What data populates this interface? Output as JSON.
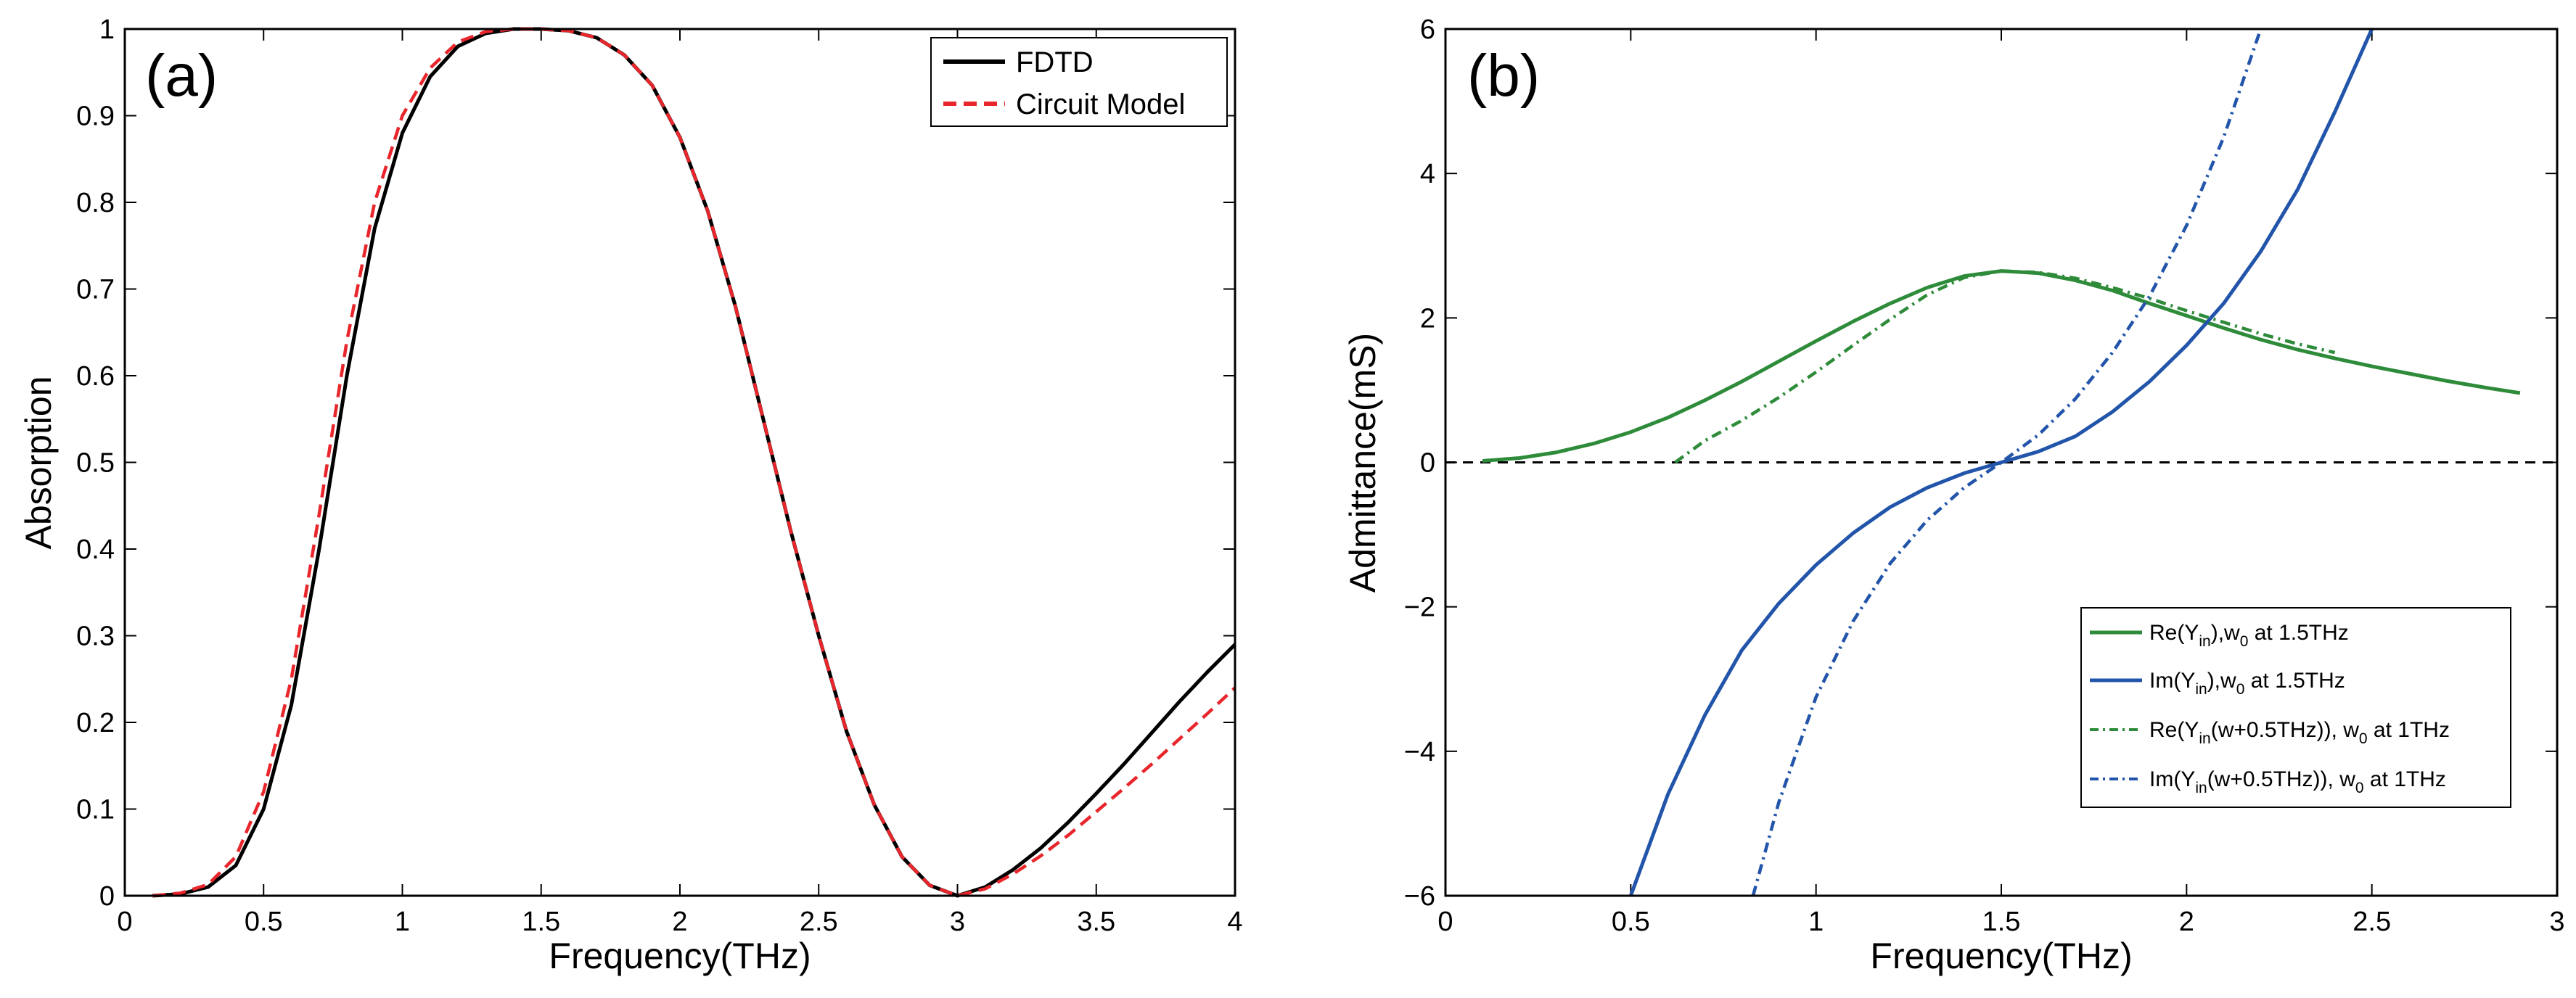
{
  "figure": {
    "panels": [
      "(a)",
      "(b)"
    ]
  },
  "chart_data": [
    {
      "type": "line",
      "panel_label": "(a)",
      "title": "",
      "xlabel": "Frequency(THz)",
      "ylabel": "Absorption",
      "xlim": [
        0,
        4
      ],
      "ylim": [
        0,
        1
      ],
      "x_ticks": [
        0,
        0.5,
        1,
        1.5,
        2,
        2.5,
        3,
        3.5,
        4
      ],
      "x_tick_labels": [
        "0",
        "0.5",
        "1",
        "1.5",
        "2",
        "2.5",
        "3",
        "3.5",
        "4"
      ],
      "y_ticks": [
        0,
        0.1,
        0.2,
        0.3,
        0.4,
        0.5,
        0.6,
        0.7,
        0.8,
        0.9,
        1
      ],
      "y_tick_labels": [
        "0",
        "0.1",
        "0.2",
        "0.3",
        "0.4",
        "0.5",
        "0.6",
        "0.7",
        "0.8",
        "0.9",
        "1"
      ],
      "grid": false,
      "legend": "top-right",
      "series": [
        {
          "name": "FDTD",
          "color": "#000000",
          "style": "solid",
          "points": [
            [
              0.1,
              0.0
            ],
            [
              0.2,
              0.002
            ],
            [
              0.3,
              0.01
            ],
            [
              0.4,
              0.035
            ],
            [
              0.5,
              0.1
            ],
            [
              0.6,
              0.22
            ],
            [
              0.7,
              0.4
            ],
            [
              0.8,
              0.6
            ],
            [
              0.9,
              0.77
            ],
            [
              1.0,
              0.88
            ],
            [
              1.1,
              0.945
            ],
            [
              1.2,
              0.98
            ],
            [
              1.3,
              0.995
            ],
            [
              1.4,
              1.0
            ],
            [
              1.5,
              1.0
            ],
            [
              1.6,
              0.998
            ],
            [
              1.7,
              0.99
            ],
            [
              1.8,
              0.97
            ],
            [
              1.9,
              0.935
            ],
            [
              2.0,
              0.875
            ],
            [
              2.1,
              0.79
            ],
            [
              2.2,
              0.68
            ],
            [
              2.3,
              0.55
            ],
            [
              2.4,
              0.42
            ],
            [
              2.5,
              0.3
            ],
            [
              2.6,
              0.19
            ],
            [
              2.7,
              0.105
            ],
            [
              2.8,
              0.045
            ],
            [
              2.9,
              0.012
            ],
            [
              3.0,
              0.0
            ],
            [
              3.1,
              0.01
            ],
            [
              3.2,
              0.03
            ],
            [
              3.3,
              0.055
            ],
            [
              3.4,
              0.085
            ],
            [
              3.5,
              0.118
            ],
            [
              3.6,
              0.152
            ],
            [
              3.7,
              0.188
            ],
            [
              3.8,
              0.224
            ],
            [
              3.9,
              0.258
            ],
            [
              4.0,
              0.29
            ]
          ]
        },
        {
          "name": "Circuit Model",
          "color": "#e8262b",
          "style": "dashed",
          "points": [
            [
              0.1,
              0.0
            ],
            [
              0.2,
              0.003
            ],
            [
              0.3,
              0.013
            ],
            [
              0.4,
              0.045
            ],
            [
              0.5,
              0.12
            ],
            [
              0.6,
              0.25
            ],
            [
              0.7,
              0.44
            ],
            [
              0.8,
              0.64
            ],
            [
              0.9,
              0.8
            ],
            [
              1.0,
              0.9
            ],
            [
              1.1,
              0.955
            ],
            [
              1.2,
              0.985
            ],
            [
              1.3,
              0.997
            ],
            [
              1.4,
              1.0
            ],
            [
              1.5,
              1.0
            ],
            [
              1.6,
              0.998
            ],
            [
              1.7,
              0.99
            ],
            [
              1.8,
              0.97
            ],
            [
              1.9,
              0.935
            ],
            [
              2.0,
              0.875
            ],
            [
              2.1,
              0.79
            ],
            [
              2.2,
              0.68
            ],
            [
              2.3,
              0.55
            ],
            [
              2.4,
              0.42
            ],
            [
              2.5,
              0.3
            ],
            [
              2.6,
              0.19
            ],
            [
              2.7,
              0.105
            ],
            [
              2.8,
              0.045
            ],
            [
              2.9,
              0.012
            ],
            [
              3.0,
              0.0
            ],
            [
              3.1,
              0.008
            ],
            [
              3.2,
              0.025
            ],
            [
              3.3,
              0.046
            ],
            [
              3.4,
              0.07
            ],
            [
              3.5,
              0.097
            ],
            [
              3.6,
              0.124
            ],
            [
              3.7,
              0.152
            ],
            [
              3.8,
              0.181
            ],
            [
              3.9,
              0.21
            ],
            [
              4.0,
              0.24
            ]
          ]
        }
      ]
    },
    {
      "type": "line",
      "panel_label": "(b)",
      "title": "",
      "xlabel": "Frequency(THz)",
      "ylabel": "Admittance(mS)",
      "xlim": [
        0,
        3
      ],
      "ylim": [
        -6,
        6
      ],
      "x_ticks": [
        0,
        0.5,
        1,
        1.5,
        2,
        2.5,
        3
      ],
      "x_tick_labels": [
        "0",
        "0.5",
        "1",
        "1.5",
        "2",
        "2.5",
        "3"
      ],
      "y_ticks": [
        -6,
        -4,
        -2,
        0,
        2,
        4,
        6
      ],
      "y_tick_labels": [
        "−6",
        "−4",
        "−2",
        "0",
        "2",
        "4",
        "6"
      ],
      "grid": false,
      "legend": "bottom-right",
      "reference_line": {
        "y": 0,
        "color": "#000000",
        "style": "dashed"
      },
      "series": [
        {
          "name": "Re(Y_in), w_0 at 1.5THz",
          "legend_parts": [
            "Re(Y",
            "in",
            "),w",
            "0",
            " at 1.5THz"
          ],
          "color": "#2e8b3a",
          "style": "solid",
          "points": [
            [
              0.1,
              0.02
            ],
            [
              0.2,
              0.06
            ],
            [
              0.3,
              0.14
            ],
            [
              0.4,
              0.26
            ],
            [
              0.5,
              0.42
            ],
            [
              0.6,
              0.62
            ],
            [
              0.7,
              0.86
            ],
            [
              0.8,
              1.12
            ],
            [
              0.9,
              1.4
            ],
            [
              1.0,
              1.68
            ],
            [
              1.1,
              1.95
            ],
            [
              1.2,
              2.2
            ],
            [
              1.3,
              2.42
            ],
            [
              1.4,
              2.58
            ],
            [
              1.5,
              2.65
            ],
            [
              1.6,
              2.62
            ],
            [
              1.7,
              2.52
            ],
            [
              1.8,
              2.38
            ],
            [
              1.9,
              2.2
            ],
            [
              2.0,
              2.03
            ],
            [
              2.1,
              1.86
            ],
            [
              2.2,
              1.7
            ],
            [
              2.3,
              1.56
            ],
            [
              2.4,
              1.44
            ],
            [
              2.5,
              1.33
            ],
            [
              2.6,
              1.23
            ],
            [
              2.7,
              1.13
            ],
            [
              2.8,
              1.04
            ],
            [
              2.9,
              0.96
            ]
          ]
        },
        {
          "name": "Im(Y_in), w_0 at 1.5THz",
          "legend_parts": [
            "Im(Y",
            "in",
            "),w",
            "0",
            " at 1.5THz"
          ],
          "color": "#2255aa",
          "style": "solid",
          "points": [
            [
              0.5,
              -6.0
            ],
            [
              0.6,
              -4.6
            ],
            [
              0.7,
              -3.5
            ],
            [
              0.8,
              -2.6
            ],
            [
              0.9,
              -1.95
            ],
            [
              1.0,
              -1.42
            ],
            [
              1.1,
              -0.98
            ],
            [
              1.2,
              -0.62
            ],
            [
              1.3,
              -0.35
            ],
            [
              1.4,
              -0.15
            ],
            [
              1.5,
              0.0
            ],
            [
              1.6,
              0.15
            ],
            [
              1.7,
              0.36
            ],
            [
              1.8,
              0.7
            ],
            [
              1.9,
              1.12
            ],
            [
              2.0,
              1.62
            ],
            [
              2.1,
              2.2
            ],
            [
              2.2,
              2.92
            ],
            [
              2.3,
              3.78
            ],
            [
              2.4,
              4.85
            ],
            [
              2.5,
              6.0
            ]
          ]
        },
        {
          "name": "Re(Y_in(w+0.5THz)), w_0 at 1THz",
          "legend_parts": [
            "Re(Y",
            "in",
            "(w+0.5THz)), w",
            "0",
            " at 1THz"
          ],
          "color": "#2e8b3a",
          "style": "dashdot",
          "points": [
            [
              0.62,
              0.0
            ],
            [
              0.7,
              0.3
            ],
            [
              0.8,
              0.58
            ],
            [
              0.9,
              0.9
            ],
            [
              1.0,
              1.25
            ],
            [
              1.1,
              1.62
            ],
            [
              1.2,
              1.98
            ],
            [
              1.3,
              2.32
            ],
            [
              1.4,
              2.56
            ],
            [
              1.5,
              2.65
            ],
            [
              1.6,
              2.63
            ],
            [
              1.7,
              2.55
            ],
            [
              1.8,
              2.42
            ],
            [
              1.9,
              2.27
            ],
            [
              2.0,
              2.1
            ],
            [
              2.1,
              1.94
            ],
            [
              2.2,
              1.78
            ],
            [
              2.3,
              1.64
            ],
            [
              2.4,
              1.52
            ]
          ]
        },
        {
          "name": "Im(Y_in(w+0.5THz)), w_0 at 1THz",
          "legend_parts": [
            "Im(Y",
            "in",
            "(w+0.5THz)), w",
            "0",
            " at 1THz"
          ],
          "color": "#2255aa",
          "style": "dashdot",
          "points": [
            [
              0.83,
              -6.0
            ],
            [
              0.9,
              -4.7
            ],
            [
              1.0,
              -3.25
            ],
            [
              1.1,
              -2.2
            ],
            [
              1.2,
              -1.4
            ],
            [
              1.3,
              -0.8
            ],
            [
              1.4,
              -0.35
            ],
            [
              1.5,
              0.0
            ],
            [
              1.6,
              0.38
            ],
            [
              1.7,
              0.88
            ],
            [
              1.8,
              1.52
            ],
            [
              1.9,
              2.3
            ],
            [
              2.0,
              3.28
            ],
            [
              2.1,
              4.5
            ],
            [
              2.2,
              6.0
            ]
          ]
        }
      ]
    }
  ]
}
